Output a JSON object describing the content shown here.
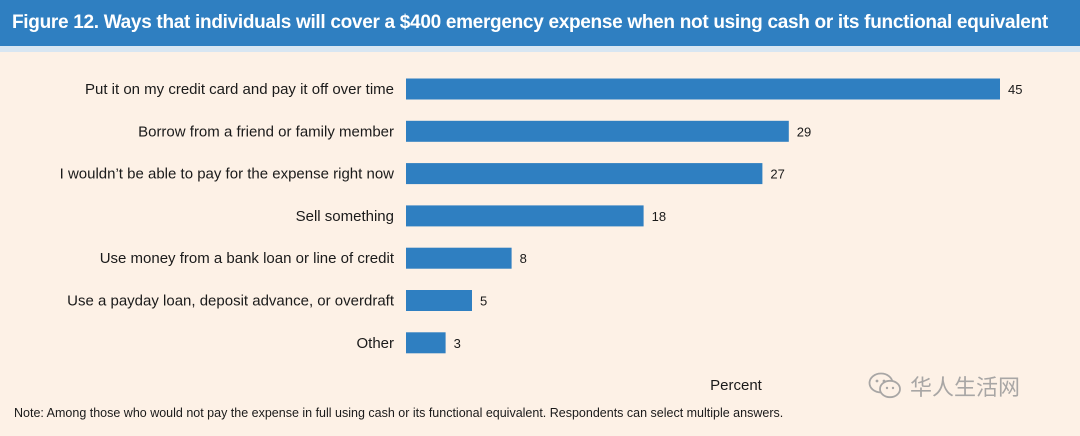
{
  "header": {
    "title": "Figure 12. Ways that individuals will cover a $400 emergency expense when not using cash or its functional equivalent"
  },
  "chart_data": {
    "type": "bar",
    "orientation": "horizontal",
    "categories": [
      "Put it on my credit card and pay it off over time",
      "Borrow from a friend or family member",
      "I wouldn’t be able to pay for the expense right now",
      "Sell something",
      "Use money from a bank loan or line of credit",
      "Use a payday loan, deposit advance, or overdraft",
      "Other"
    ],
    "values": [
      45,
      29,
      27,
      18,
      8,
      5,
      3
    ],
    "data_labels": [
      "45",
      "29",
      "27",
      "18",
      "8",
      "5",
      "3"
    ],
    "xlabel": "Percent",
    "xlim": [
      0,
      45
    ],
    "grid": false,
    "bar_color": "#2f7fc1"
  },
  "note": "Note: Among those who would not pay the expense in full using cash or its functional equivalent. Respondents can select multiple answers.",
  "watermark": {
    "icon": "wechat-icon",
    "text": "华人生活网"
  },
  "colors": {
    "header_bg": "#2f7fc1",
    "panel_bg": "#fdf1e6"
  }
}
